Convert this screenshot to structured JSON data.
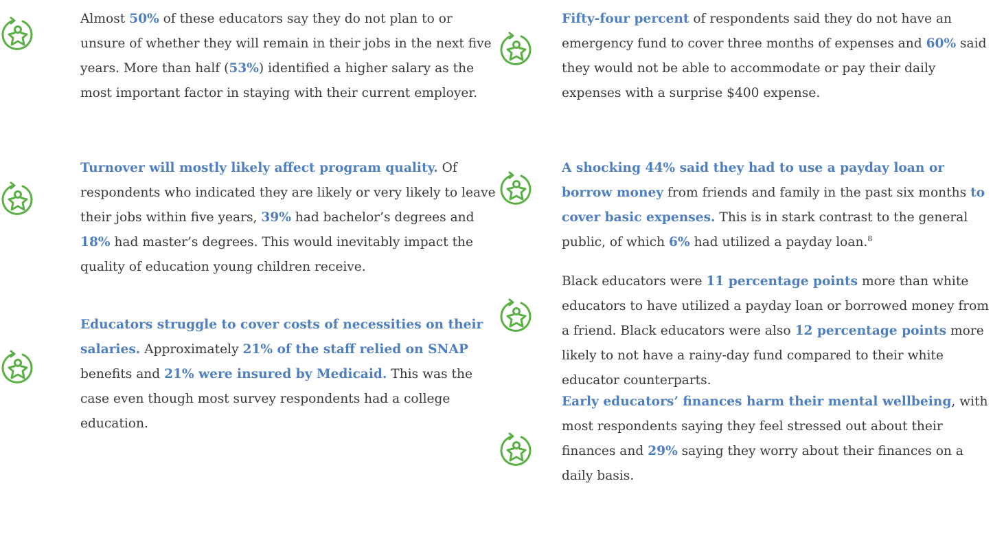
{
  "columns": [
    {
      "items": [
        {
          "segments": [
            {
              "text": "Almost "
            },
            {
              "text": "50%",
              "bold": true
            },
            {
              "text": " of these educators say they do not plan to or unsure of whether they will remain in their jobs in the next five years. More than half ("
            },
            {
              "text": "53%",
              "bold": true
            },
            {
              "text": ") identified a higher salary as the most important factor in staying with their current employer."
            }
          ]
        },
        {
          "segments": [
            {
              "text": "Turnover will mostly likely affect program quality.",
              "bold": true
            },
            {
              "text": " Of respondents who indicated they are likely or very likely to leave their jobs within five years, "
            },
            {
              "text": "39%",
              "bold": true
            },
            {
              "text": " had bachelor’s degrees and "
            },
            {
              "text": "18%",
              "bold": true
            },
            {
              "text": " had master’s degrees. This would inevitably impact the quality of education young children receive."
            }
          ]
        },
        {
          "segments": [
            {
              "text": "Educators struggle to cover costs of necessities on their salaries.",
              "bold": true
            },
            {
              "text": " Approximately "
            },
            {
              "text": "21% of the staff relied on SNAP",
              "bold": true
            },
            {
              "text": " benefits and "
            },
            {
              "text": "21% were insured by Medicaid.",
              "bold": true
            },
            {
              "text": " This was the case even though most survey respondents had a college education."
            }
          ]
        }
      ]
    },
    {
      "items": [
        {
          "segments": [
            {
              "text": "Fifty-four percent",
              "bold": true
            },
            {
              "text": " of respondents said they do not have an emergency fund to cover three months of expenses and "
            },
            {
              "text": "60%",
              "bold": true
            },
            {
              "text": " said they would not be able to accommodate or pay their daily expenses with a surprise $400 expense."
            }
          ]
        },
        {
          "segments": [
            {
              "text": "A shocking 44% said they had to use a payday loan or borrow money",
              "bold": true
            },
            {
              "text": " from friends and family in the past six months "
            },
            {
              "text": "to cover basic expenses.",
              "bold": true
            },
            {
              "text": " This is in stark contrast to the general public, of which "
            },
            {
              "text": "6%",
              "bold": true
            },
            {
              "text": " had utilized a payday loan."
            },
            {
              "text": "8",
              "sup": true
            }
          ]
        },
        {
          "segments": [
            {
              "text": "Black educators were "
            },
            {
              "text": "11 percentage points",
              "bold": true
            },
            {
              "text": " more than white educators to have utilized a payday loan or borrowed money from a friend. Black educators were also "
            },
            {
              "text": "12 percentage points",
              "bold": true
            },
            {
              "text": " more likely to not have a rainy-day fund compared to their white educator counterparts."
            }
          ]
        },
        {
          "segments": [
            {
              "text": "Early educators’ finances harm their mental wellbeing",
              "bold": true
            },
            {
              "text": ", with most respondents saying they feel stressed out about their finances and "
            },
            {
              "text": "29%",
              "bold": true
            },
            {
              "text": " saying they worry about their finances on a daily basis."
            }
          ]
        }
      ]
    }
  ]
}
